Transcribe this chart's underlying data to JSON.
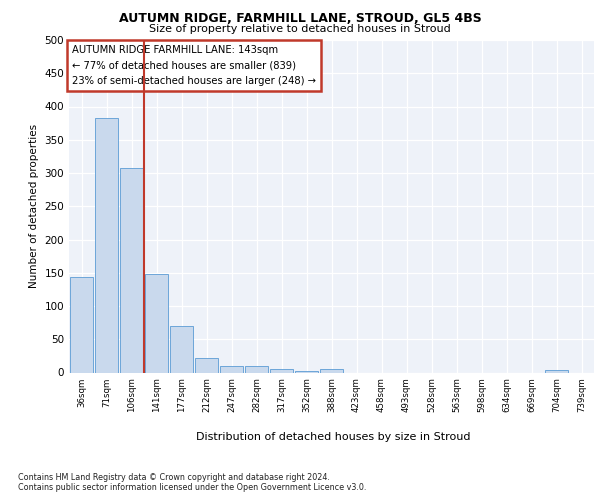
{
  "title1": "AUTUMN RIDGE, FARMHILL LANE, STROUD, GL5 4BS",
  "title2": "Size of property relative to detached houses in Stroud",
  "xlabel": "Distribution of detached houses by size in Stroud",
  "ylabel": "Number of detached properties",
  "categories": [
    "36sqm",
    "71sqm",
    "106sqm",
    "141sqm",
    "177sqm",
    "212sqm",
    "247sqm",
    "282sqm",
    "317sqm",
    "352sqm",
    "388sqm",
    "423sqm",
    "458sqm",
    "493sqm",
    "528sqm",
    "563sqm",
    "598sqm",
    "634sqm",
    "669sqm",
    "704sqm",
    "739sqm"
  ],
  "values": [
    143,
    383,
    307,
    148,
    70,
    22,
    10,
    10,
    5,
    2,
    5,
    0,
    0,
    0,
    0,
    0,
    0,
    0,
    0,
    4,
    0
  ],
  "bar_color": "#c9d9ed",
  "bar_edge_color": "#5b9bd5",
  "vline_color": "#c0392b",
  "vline_pos": 2.5,
  "annotation_text": "AUTUMN RIDGE FARMHILL LANE: 143sqm\n← 77% of detached houses are smaller (839)\n23% of semi-detached houses are larger (248) →",
  "annotation_box_color": "#ffffff",
  "annotation_box_edge": "#c0392b",
  "ylim": [
    0,
    500
  ],
  "yticks": [
    0,
    50,
    100,
    150,
    200,
    250,
    300,
    350,
    400,
    450,
    500
  ],
  "footer1": "Contains HM Land Registry data © Crown copyright and database right 2024.",
  "footer2": "Contains public sector information licensed under the Open Government Licence v3.0.",
  "plot_bg_color": "#eef2f9"
}
